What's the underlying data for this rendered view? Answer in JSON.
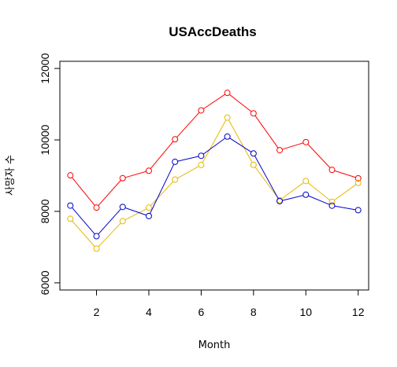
{
  "chart_data": {
    "type": "line",
    "title": "USAccDeaths",
    "xlabel": "Month",
    "ylabel": "사망자 수",
    "xlim": [
      0.6,
      12.4
    ],
    "ylim": [
      5800,
      12200
    ],
    "x_ticks": [
      2,
      4,
      6,
      8,
      10,
      12
    ],
    "y_ticks": [
      6000,
      8000,
      10000,
      12000
    ],
    "grid": false,
    "legend": "none",
    "x": [
      1,
      2,
      3,
      4,
      5,
      6,
      7,
      8,
      9,
      10,
      11,
      12
    ],
    "series": [
      {
        "color": "#ff0000",
        "values": [
          9007,
          8106,
          8928,
          9137,
          10017,
          10826,
          11317,
          10744,
          9713,
          9938,
          9161,
          8927
        ]
      },
      {
        "color": "#e6b800",
        "values": [
          7792,
          6957,
          7726,
          8106,
          8890,
          9299,
          10625,
          9302,
          8314,
          8850,
          8265,
          8796
        ]
      },
      {
        "color": "#0000cd",
        "values": [
          8162,
          7306,
          8124,
          7870,
          9387,
          9556,
          10093,
          9620,
          8285,
          8466,
          8160,
          8034
        ]
      }
    ]
  }
}
